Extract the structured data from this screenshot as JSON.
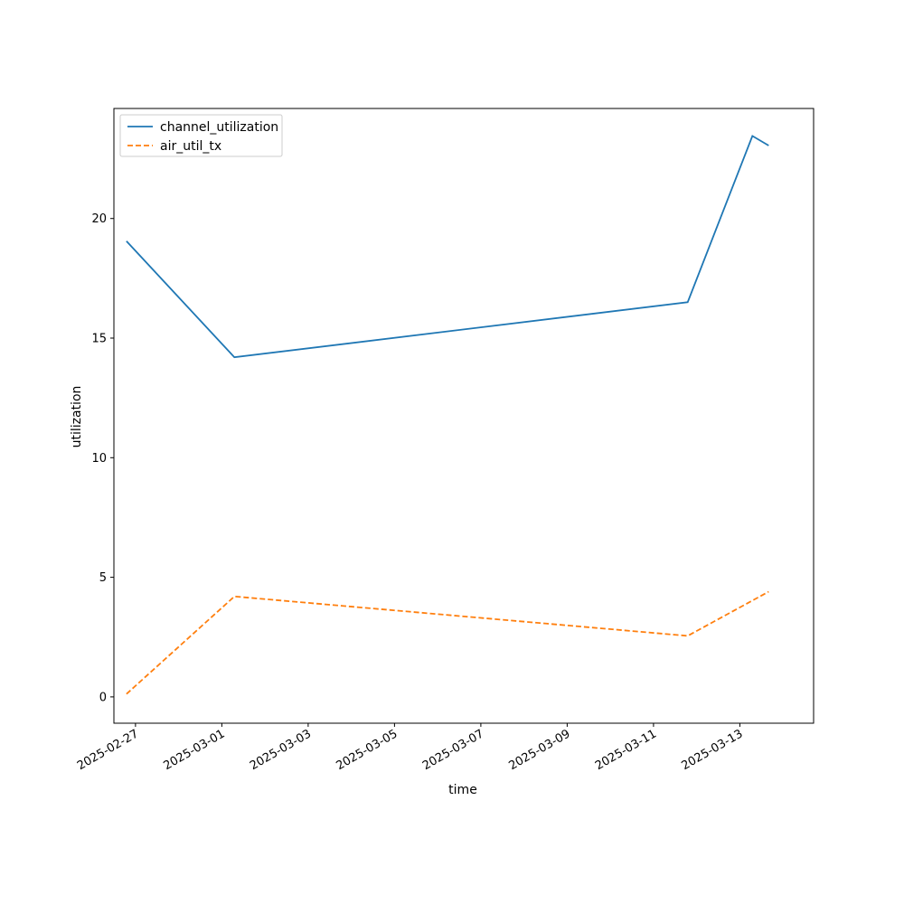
{
  "chart_data": {
    "type": "line",
    "xlabel": "time",
    "ylabel": "utilization",
    "x_ticks": [
      "2025-02-27",
      "2025-03-01",
      "2025-03-03",
      "2025-03-05",
      "2025-03-07",
      "2025-03-09",
      "2025-03-11",
      "2025-03-13"
    ],
    "y_ticks": [
      0,
      5,
      10,
      15,
      20
    ],
    "xlim": [
      "2025-02-26T12:00",
      "2025-03-14T17:00"
    ],
    "ylim": [
      -1.1,
      24.6
    ],
    "legend": "top-left",
    "grid": false,
    "series": [
      {
        "name": "channel_utilization",
        "color": "#1f77b4",
        "style": "solid",
        "points": [
          {
            "x": "2025-02-26T19:00",
            "y": 19.05
          },
          {
            "x": "2025-03-01T07:00",
            "y": 14.2
          },
          {
            "x": "2025-03-11T19:00",
            "y": 16.5
          },
          {
            "x": "2025-03-13T07:00",
            "y": 23.45
          },
          {
            "x": "2025-03-13T16:00",
            "y": 23.05
          }
        ]
      },
      {
        "name": "air_util_tx",
        "color": "#ff7f0e",
        "style": "dashed",
        "points": [
          {
            "x": "2025-02-26T19:00",
            "y": 0.12
          },
          {
            "x": "2025-03-01T07:00",
            "y": 4.2
          },
          {
            "x": "2025-03-11T19:00",
            "y": 2.55
          },
          {
            "x": "2025-03-13T16:00",
            "y": 4.4
          }
        ]
      }
    ]
  }
}
